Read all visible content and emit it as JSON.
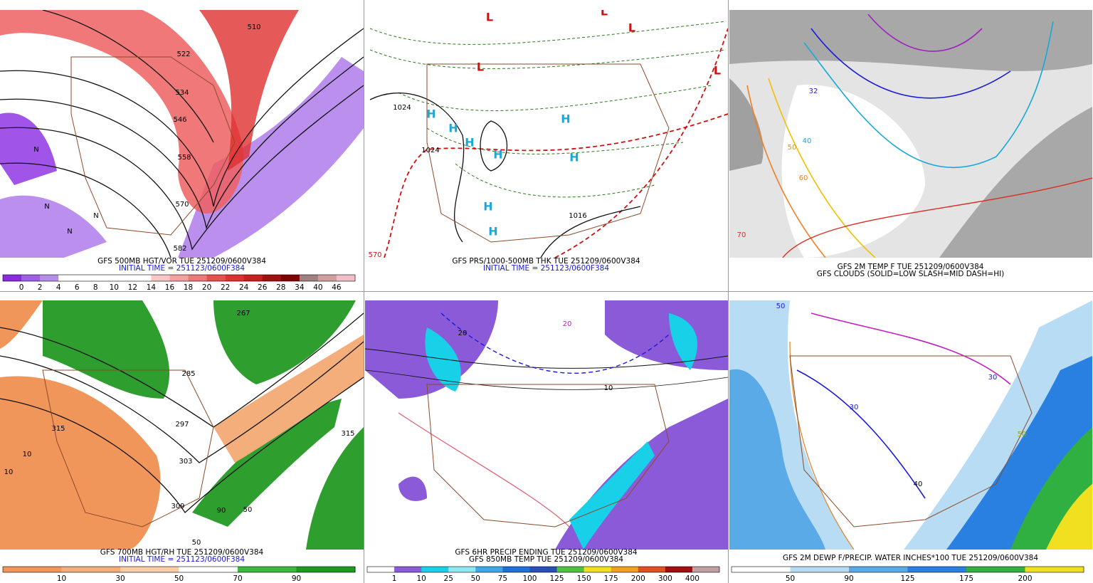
{
  "panels": [
    {
      "caption": [
        "GFS 500MB HGT/VOR TUE 251209/0600V384",
        "INITIAL TIME = 251123/0600F384"
      ],
      "colorbar": {
        "labels": [
          "0",
          "2",
          "4",
          "6",
          "8",
          "10",
          "12",
          "14",
          "16",
          "18",
          "20",
          "22",
          "24",
          "26",
          "28",
          "34",
          "40",
          "46"
        ],
        "colors": [
          "#8a2be2",
          "#9d5fe6",
          "#b48ee6",
          "#ffffff",
          "#ffffff",
          "#ffffff",
          "#ffffff",
          "#ffffff",
          "#f7c6c6",
          "#f2a0a0",
          "#ee7878",
          "#e85050",
          "#e03030",
          "#c82020",
          "#a01010",
          "#800000",
          "#a08080",
          "#d0a0a0",
          "#f0c0c8"
        ]
      },
      "map_labels": [
        "510",
        "522",
        "534",
        "546",
        "558",
        "570",
        "582",
        "N",
        "N",
        "N",
        "N"
      ]
    },
    {
      "caption": [
        "GFS PRS/1000-500MB THK TUE 251209/0600V384",
        "INITIAL TIME = 251123/0600F384"
      ],
      "colorbar": null,
      "map_labels": [
        "H",
        "H",
        "H",
        "H",
        "H",
        "H",
        "H",
        "H",
        "L",
        "L",
        "L",
        "L",
        "L",
        "1024",
        "1024",
        "1016",
        "570"
      ]
    },
    {
      "caption": [
        "GFS 2M TEMP F TUE 251209/0600V384",
        "GFS CLOUDS (SOLID=LOW SLASH=MID DASH=HI)"
      ],
      "colorbar": null,
      "map_labels": [
        "32",
        "40",
        "50",
        "60",
        "70"
      ]
    },
    {
      "caption": [
        "GFS 700MB HGT/RH TUE 251209/0600V384",
        "INITIAL TIME = 251123/0600F384"
      ],
      "colorbar": {
        "labels": [
          "10",
          "30",
          "50",
          "70",
          "90"
        ],
        "colors": [
          "#f0965a",
          "#f4ae7c",
          "#f8cca8",
          "#ffffff",
          "#3cb83c",
          "#1e9b1e"
        ]
      },
      "map_labels": [
        "315",
        "315",
        "10",
        "10",
        "267",
        "285",
        "297",
        "303",
        "309",
        "50",
        "90",
        "50"
      ]
    },
    {
      "caption": [
        "GFS 6HR PRECIP ENDING TUE 251209/0600V384",
        "GFS 850MB TEMP TUE 251209/0600V384"
      ],
      "colorbar": {
        "labels": [
          "1",
          "10",
          "25",
          "50",
          "75",
          "100",
          "125",
          "150",
          "175",
          "200",
          "300",
          "400"
        ],
        "colors": [
          "#ffffff",
          "#8a5ad8",
          "#18d0e8",
          "#8ee8f0",
          "#40a8e8",
          "#2070d8",
          "#2a50b8",
          "#50c040",
          "#f0e020",
          "#f0a020",
          "#e05020",
          "#a01010",
          "#c0a0a0"
        ]
      },
      "map_labels": [
        "20",
        "20",
        "10"
      ]
    },
    {
      "caption": [
        "GFS 2M DEWP F/PRECIP. WATER INCHES*100 TUE 251209/0600V384"
      ],
      "colorbar": {
        "labels": [
          "50",
          "90",
          "125",
          "175",
          "200"
        ],
        "colors": [
          "#ffffff",
          "#b8dcf4",
          "#5aaae8",
          "#2a80e0",
          "#30b040",
          "#f0e020"
        ]
      },
      "map_labels": [
        "50",
        "30",
        "40",
        "50",
        "30"
      ]
    }
  ]
}
